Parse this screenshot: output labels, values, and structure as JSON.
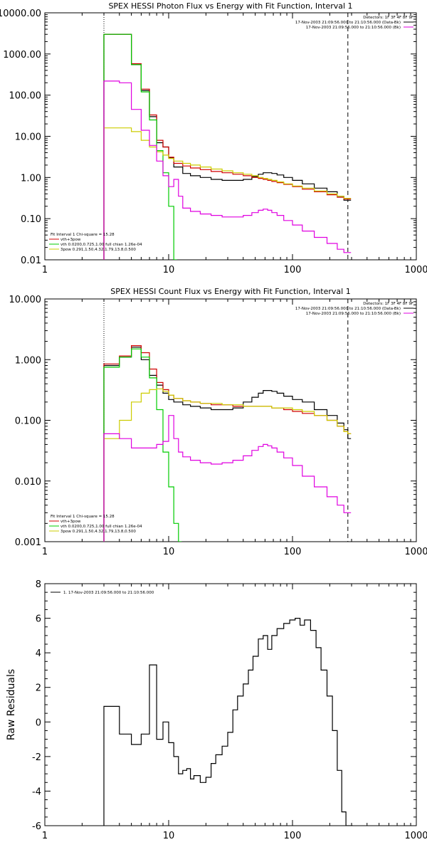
{
  "chart_data": [
    {
      "type": "line",
      "title": "SPEX HESSI Photon Flux vs Energy with Fit Function, Interval 1",
      "xscale": "log",
      "yscale": "log",
      "xlim": [
        1,
        1000
      ],
      "ylim": [
        0.01,
        10000
      ],
      "x_ticks": [
        1,
        10,
        100,
        1000
      ],
      "x_tick_labels": [
        "1",
        "10",
        "100",
        "1000"
      ],
      "y_ticks": [
        0.01,
        0.1,
        1,
        10,
        100,
        1000,
        10000
      ],
      "y_tick_labels": [
        "0.01",
        "0.10",
        "1.00",
        "10.00",
        "100.00",
        "1000.00",
        "10000.00"
      ],
      "legend_top_right": [
        "Detectors: 1F 3F 4F 8F 9F",
        "17-Nov-2003 21:09:56.000 to 21:10:56.000 (Data-Bk)",
        "17-Nov-2003 21:09:56.000 to 21:10:56.000 (Bk)"
      ],
      "legend_bottom_left": [
        "Fit Interval 1   Chi-square = 15.28",
        "vth+3pow",
        "vth 0.0200,0.725,1.00  full chian 1.26e-04",
        "3pow 0.291,1.50,4.32,1.79,13.8,0.500"
      ],
      "vlines": [
        {
          "x": 3,
          "style": "dotted",
          "color": "#000000"
        },
        {
          "x": 280,
          "style": "dashed",
          "color": "#000000"
        }
      ],
      "series": [
        {
          "color": "#000000",
          "x": [
            3,
            4,
            5,
            6,
            7,
            8,
            9,
            10,
            11,
            13,
            15,
            18,
            22,
            27,
            33,
            40,
            47,
            53,
            58,
            63,
            68,
            75,
            85,
            100,
            120,
            150,
            190,
            230,
            260,
            280
          ],
          "y": [
            3000,
            3000,
            550,
            130,
            30,
            7,
            5.5,
            3,
            1.8,
            1.25,
            1.1,
            1.0,
            0.9,
            0.85,
            0.85,
            0.9,
            1.05,
            1.2,
            1.3,
            1.3,
            1.25,
            1.15,
            1.0,
            0.85,
            0.7,
            0.55,
            0.45,
            0.35,
            0.28,
            0.28
          ]
        },
        {
          "color": "#d00000",
          "x": [
            3,
            4,
            5,
            6,
            7,
            8,
            9,
            10,
            11,
            13,
            15,
            18,
            22,
            27,
            33,
            40,
            47,
            53,
            58,
            63,
            68,
            75,
            85,
            100,
            120,
            150,
            190,
            230,
            260,
            280
          ],
          "y": [
            3000,
            3000,
            580,
            140,
            33,
            8,
            5.5,
            3.1,
            2.2,
            1.9,
            1.7,
            1.55,
            1.4,
            1.3,
            1.2,
            1.1,
            1.0,
            0.95,
            0.9,
            0.85,
            0.8,
            0.75,
            0.68,
            0.6,
            0.52,
            0.45,
            0.38,
            0.33,
            0.3,
            0.3
          ]
        },
        {
          "color": "#00cc00",
          "x": [
            3,
            4,
            5,
            6,
            7,
            8,
            9,
            10,
            11
          ],
          "y": [
            3000,
            3000,
            550,
            120,
            25,
            4.5,
            1.3,
            0.2,
            0.01
          ]
        },
        {
          "color": "#cccc00",
          "x": [
            3,
            4,
            5,
            6,
            7,
            8,
            9,
            10,
            11,
            13,
            15,
            18,
            22,
            27,
            33,
            40,
            47,
            53,
            58,
            63,
            68,
            75,
            85,
            100,
            120,
            150,
            190,
            230,
            260,
            280
          ],
          "y": [
            16,
            16,
            13,
            8,
            5.5,
            4.2,
            3.5,
            2.9,
            2.5,
            2.2,
            2.0,
            1.8,
            1.6,
            1.45,
            1.3,
            1.2,
            1.1,
            1.0,
            0.95,
            0.9,
            0.85,
            0.78,
            0.7,
            0.62,
            0.55,
            0.47,
            0.4,
            0.35,
            0.31,
            0.31
          ]
        },
        {
          "color": "#e000e0",
          "x": [
            3,
            4,
            5,
            6,
            7,
            8,
            9,
            10,
            11,
            12,
            13,
            15,
            18,
            22,
            27,
            33,
            40,
            47,
            53,
            58,
            63,
            68,
            75,
            85,
            100,
            120,
            150,
            190,
            230,
            260,
            280
          ],
          "y": [
            220,
            200,
            45,
            14,
            6,
            2.5,
            1.1,
            0.6,
            0.9,
            0.35,
            0.18,
            0.15,
            0.13,
            0.12,
            0.11,
            0.11,
            0.12,
            0.14,
            0.16,
            0.17,
            0.16,
            0.14,
            0.12,
            0.09,
            0.07,
            0.05,
            0.035,
            0.025,
            0.018,
            0.015,
            0.015
          ]
        }
      ]
    },
    {
      "type": "line",
      "title": "SPEX HESSI Count Flux vs Energy with Fit Function, Interval 1",
      "xscale": "log",
      "yscale": "log",
      "xlim": [
        1,
        1000
      ],
      "ylim": [
        0.001,
        10
      ],
      "x_ticks": [
        1,
        10,
        100,
        1000
      ],
      "x_tick_labels": [
        "1",
        "10",
        "100",
        "1000"
      ],
      "y_ticks": [
        0.001,
        0.01,
        0.1,
        1,
        10
      ],
      "y_tick_labels": [
        "0.001",
        "0.010",
        "0.100",
        "1.000",
        "10.000"
      ],
      "legend_top_right": [
        "Detectors: 1F 3F 4F 8F 9F",
        "17-Nov-2003 21:09:56.000 to 21:10:56.000 (Data-Bk)",
        "17-Nov-2003 21:09:56.000 to 21:10:56.000 (Bk)"
      ],
      "legend_bottom_left": [
        "Fit Interval 1   Chi-square = 15.28",
        "vth+3pow",
        "vth 0.0200,0.725,1.00  full chian 1.26e-04",
        "3pow 0.291,1.50,4.32,1.79,13.8,0.500"
      ],
      "vlines": [
        {
          "x": 3,
          "style": "dotted",
          "color": "#000000"
        },
        {
          "x": 280,
          "style": "dashed",
          "color": "#000000"
        }
      ],
      "series": [
        {
          "color": "#000000",
          "x": [
            3,
            4,
            5,
            6,
            7,
            8,
            9,
            10,
            11,
            13,
            15,
            18,
            22,
            27,
            33,
            40,
            47,
            53,
            58,
            63,
            68,
            75,
            85,
            100,
            120,
            150,
            190,
            230,
            260,
            280
          ],
          "y": [
            0.8,
            1.1,
            1.6,
            1.0,
            0.55,
            0.38,
            0.28,
            0.22,
            0.2,
            0.18,
            0.17,
            0.16,
            0.15,
            0.15,
            0.16,
            0.2,
            0.24,
            0.28,
            0.31,
            0.31,
            0.3,
            0.28,
            0.25,
            0.22,
            0.2,
            0.15,
            0.12,
            0.09,
            0.07,
            0.05
          ]
        },
        {
          "color": "#d00000",
          "x": [
            3,
            4,
            5,
            6,
            7,
            8,
            9,
            10,
            11,
            13,
            15,
            18,
            22,
            27,
            33,
            40,
            47,
            53,
            58,
            63,
            68,
            75,
            85,
            100,
            120,
            150,
            190,
            230,
            260,
            280
          ],
          "y": [
            0.85,
            1.15,
            1.7,
            1.3,
            0.7,
            0.42,
            0.32,
            0.26,
            0.23,
            0.21,
            0.2,
            0.19,
            0.18,
            0.18,
            0.17,
            0.17,
            0.17,
            0.17,
            0.17,
            0.17,
            0.16,
            0.16,
            0.15,
            0.14,
            0.13,
            0.12,
            0.1,
            0.08,
            0.065,
            0.06
          ]
        },
        {
          "color": "#00cc00",
          "x": [
            3,
            4,
            5,
            6,
            7,
            8,
            9,
            10,
            11,
            12
          ],
          "y": [
            0.75,
            1.1,
            1.5,
            1.1,
            0.5,
            0.15,
            0.03,
            0.008,
            0.002,
            0.001
          ]
        },
        {
          "color": "#cccc00",
          "x": [
            3,
            4,
            5,
            6,
            7,
            8,
            9,
            10,
            11,
            13,
            15,
            18,
            22,
            27,
            33,
            40,
            47,
            53,
            58,
            63,
            68,
            75,
            85,
            100,
            120,
            150,
            190,
            230,
            260,
            280
          ],
          "y": [
            0.05,
            0.1,
            0.2,
            0.28,
            0.32,
            0.33,
            0.3,
            0.26,
            0.23,
            0.21,
            0.2,
            0.19,
            0.19,
            0.18,
            0.18,
            0.17,
            0.17,
            0.17,
            0.17,
            0.17,
            0.16,
            0.16,
            0.16,
            0.15,
            0.14,
            0.12,
            0.1,
            0.08,
            0.065,
            0.06
          ]
        },
        {
          "color": "#e000e0",
          "x": [
            3,
            4,
            5,
            6,
            7,
            8,
            9,
            10,
            11,
            12,
            13,
            15,
            18,
            22,
            27,
            33,
            40,
            47,
            53,
            58,
            63,
            68,
            75,
            85,
            100,
            120,
            150,
            190,
            230,
            260,
            280
          ],
          "y": [
            0.06,
            0.05,
            0.035,
            0.035,
            0.035,
            0.04,
            0.045,
            0.12,
            0.05,
            0.03,
            0.025,
            0.022,
            0.02,
            0.019,
            0.02,
            0.022,
            0.026,
            0.032,
            0.037,
            0.04,
            0.038,
            0.035,
            0.03,
            0.024,
            0.018,
            0.012,
            0.008,
            0.0055,
            0.004,
            0.003,
            0.003
          ]
        }
      ]
    },
    {
      "type": "line",
      "title": "",
      "ylabel": "Raw Residuals",
      "xscale": "log",
      "yscale": "linear",
      "xlim": [
        1,
        1000
      ],
      "ylim": [
        -6,
        8
      ],
      "x_ticks": [
        1,
        10,
        100,
        1000
      ],
      "x_tick_labels": [
        "1",
        "10",
        "100",
        "1000"
      ],
      "y_ticks": [
        -6,
        -4,
        -2,
        0,
        2,
        4,
        6,
        8
      ],
      "y_tick_labels": [
        "-6",
        "-4",
        "-2",
        "0",
        "2",
        "4",
        "6",
        "8"
      ],
      "legend_top_left": [
        "1. 17-Nov-2003 21:09:56.000 to 21:10:56.000"
      ],
      "series": [
        {
          "color": "#000000",
          "x": [
            3,
            4,
            5,
            6,
            7,
            8,
            9,
            10,
            11,
            12,
            13,
            14,
            15,
            16,
            18,
            20,
            22,
            24,
            27,
            30,
            33,
            36,
            40,
            44,
            48,
            53,
            58,
            63,
            68,
            75,
            85,
            95,
            105,
            115,
            125,
            140,
            155,
            170,
            190,
            210,
            230,
            250,
            270,
            290
          ],
          "x_end": 290,
          "y": [
            0.9,
            -0.7,
            -1.3,
            -0.7,
            3.3,
            -1.0,
            0.0,
            -1.2,
            -2.0,
            -3.0,
            -2.8,
            -2.7,
            -3.3,
            -3.1,
            -3.5,
            -3.2,
            -2.4,
            -1.9,
            -1.4,
            -0.6,
            0.7,
            1.5,
            2.2,
            3.0,
            3.8,
            4.8,
            5.0,
            4.2,
            5.0,
            5.4,
            5.7,
            5.9,
            6.0,
            5.6,
            5.9,
            5.3,
            4.3,
            3.0,
            1.5,
            -0.5,
            -2.8,
            -5.2,
            -6.0,
            -6.0
          ],
          "drop_to_bottom_at": 280
        }
      ]
    }
  ]
}
